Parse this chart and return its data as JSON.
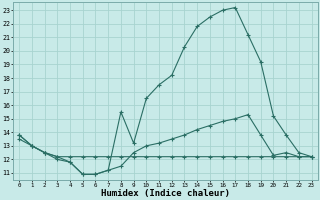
{
  "xlabel": "Humidex (Indice chaleur)",
  "bg_color": "#c8eae8",
  "grid_color": "#a8d4d0",
  "line_color": "#2a6e64",
  "x": [
    0,
    1,
    2,
    3,
    4,
    5,
    6,
    7,
    8,
    9,
    10,
    11,
    12,
    13,
    14,
    15,
    16,
    17,
    18,
    19,
    20,
    21,
    22,
    23
  ],
  "line_peak": [
    13.8,
    13.0,
    12.5,
    12.2,
    11.8,
    10.9,
    10.9,
    11.2,
    15.5,
    13.2,
    16.5,
    17.5,
    18.2,
    20.3,
    21.8,
    22.5,
    23.0,
    23.2,
    21.2,
    19.2,
    15.2,
    13.8,
    12.5,
    12.2
  ],
  "line_mid": [
    13.8,
    13.0,
    12.5,
    12.0,
    11.8,
    10.9,
    10.9,
    11.2,
    11.5,
    12.5,
    13.0,
    13.2,
    13.5,
    13.8,
    14.2,
    14.5,
    14.8,
    15.0,
    15.3,
    13.8,
    12.3,
    12.5,
    12.2,
    12.2
  ],
  "line_flat": [
    13.5,
    13.0,
    12.5,
    12.2,
    12.2,
    12.2,
    12.2,
    12.2,
    12.2,
    12.2,
    12.2,
    12.2,
    12.2,
    12.2,
    12.2,
    12.2,
    12.2,
    12.2,
    12.2,
    12.2,
    12.2,
    12.2,
    12.2,
    12.2
  ],
  "ylim_min": 10.5,
  "ylim_max": 23.6,
  "yticks": [
    11,
    12,
    13,
    14,
    15,
    16,
    17,
    18,
    19,
    20,
    21,
    22,
    23
  ],
  "xticks": [
    0,
    1,
    2,
    3,
    4,
    5,
    6,
    7,
    8,
    9,
    10,
    11,
    12,
    13,
    14,
    15,
    16,
    17,
    18,
    19,
    20,
    21,
    22,
    23
  ]
}
